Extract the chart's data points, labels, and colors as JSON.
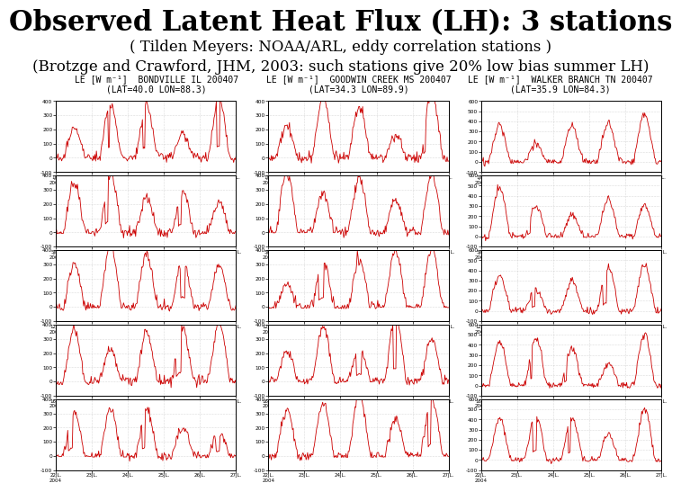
{
  "title": "Observed Latent Heat Flux (LH): 3 stations",
  "subtitle1": "( Tilden Meyers: NOAA/ARL, eddy correlation stations )",
  "subtitle2": "(Brotzge and Crawford, JHM, 2003: such stations give 20% low bias summer LH)",
  "col_titles": [
    "LE [W m⁻¹]  BONDVILLE IL 200407\n(LAT=40.0 LON=88.3)",
    "LE [W m⁻¹]  GOODWIN CREEK MS 200407\n(LAT=34.3 LON=89.9)",
    "LE [W m⁻¹]  WALKER BRANCH TN 200407\n(LAT=35.9 LON=84.3)"
  ],
  "nrows": 5,
  "ncols": 3,
  "ylim_col0": [
    -100,
    400
  ],
  "ylim_col1": [
    -100,
    400
  ],
  "ylim_col2": [
    -100,
    600
  ],
  "yticks_col0": [
    -100,
    0,
    100,
    200,
    300,
    400
  ],
  "yticks_col1": [
    -100,
    0,
    100,
    200,
    300,
    400
  ],
  "yticks_col2": [
    -100,
    0,
    100,
    200,
    300,
    400,
    500,
    600
  ],
  "line_color": "#cc0000",
  "bg_color": "#ffffff",
  "grid_color": "#bbbbbb",
  "title_fontsize": 22,
  "subtitle_fontsize": 12,
  "col_title_fontsize": 7
}
